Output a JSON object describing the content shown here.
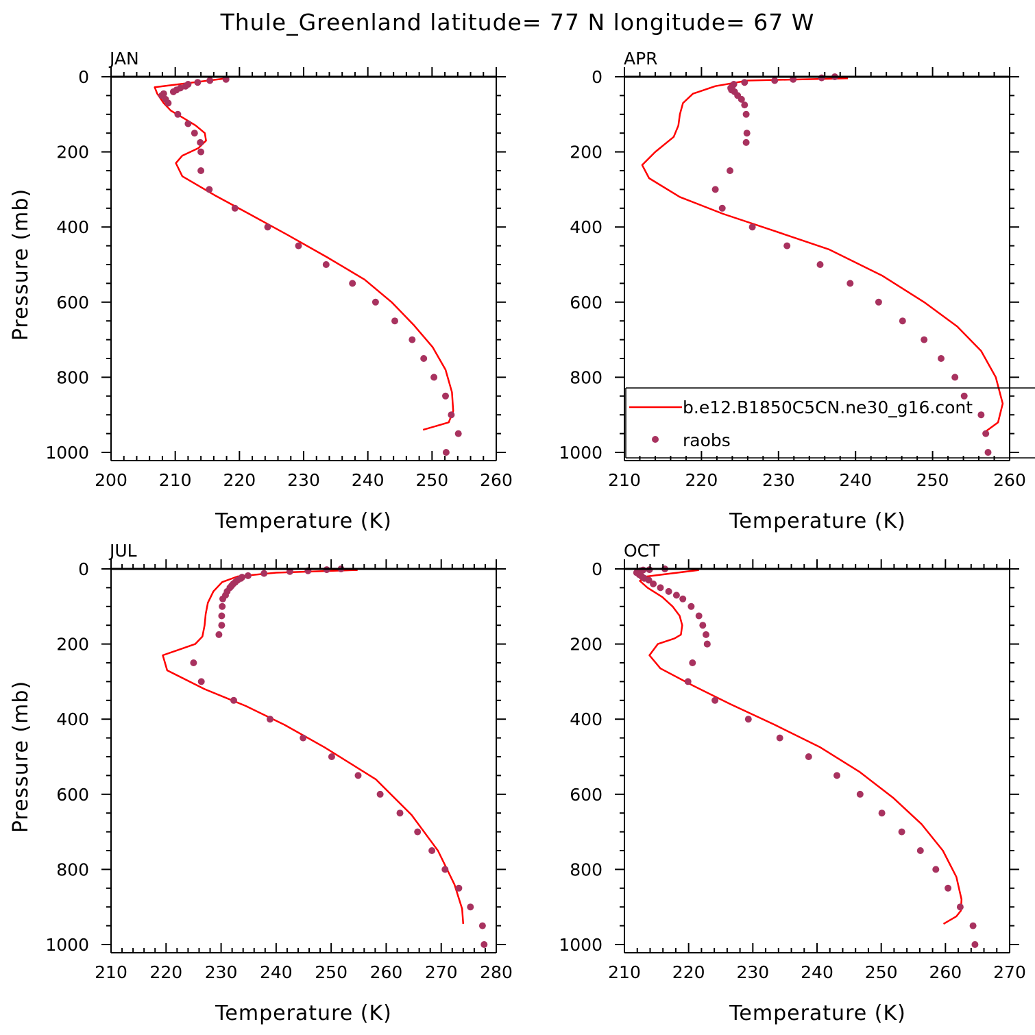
{
  "title": "Thule_Greenland  latitude= 77 N longitude= 67 W",
  "legend": {
    "model_label": "b.e12.B1850C5CN.ne30_g16.cont",
    "obs_label": "raobs"
  },
  "colors": {
    "model_line": "#ff0000",
    "obs_marker": "#a8325f"
  },
  "chart_data": [
    {
      "type": "line",
      "panel": "JAN",
      "xlabel": "Temperature (K)",
      "ylabel": "Pressure (mb)",
      "xlim": [
        200,
        260
      ],
      "ylim": [
        1000,
        0
      ],
      "xticks": [
        200,
        210,
        220,
        230,
        240,
        250,
        260
      ],
      "yticks": [
        0,
        200,
        400,
        600,
        800,
        1000
      ],
      "series": [
        {
          "name": "b.e12.B1850C5CN.ne30_g16.cont",
          "kind": "line",
          "x": [
            218,
            206.8,
            207.2,
            208.2,
            209.3,
            211.3,
            213.2,
            214.6,
            214.8,
            213.6,
            211.1,
            210.1,
            211.1,
            216.1,
            221.5,
            227.4,
            233.6,
            239.5,
            243.7,
            247.1,
            250.1,
            252.1,
            253.1,
            253.3,
            252.6,
            248.6
          ],
          "y": [
            4,
            28,
            45,
            70,
            90,
            110,
            130,
            150,
            170,
            190,
            210,
            230,
            265,
            315,
            365,
            420,
            480,
            540,
            600,
            660,
            720,
            780,
            840,
            890,
            920,
            940
          ]
        },
        {
          "name": "raobs",
          "kind": "points",
          "x": [
            217.9,
            215.4,
            213.5,
            212,
            211.6,
            210.8,
            210.2,
            209.7,
            208.2,
            207.9,
            208.5,
            208.9,
            210.4,
            212,
            213,
            213.9,
            214,
            214,
            215.3,
            219.3,
            224.4,
            229.2,
            233.5,
            237.6,
            241.2,
            244.2,
            246.9,
            248.7,
            250.3,
            252.1,
            253,
            254.1,
            252.2
          ],
          "y": [
            7,
            10,
            15,
            20,
            25,
            30,
            35,
            40,
            45,
            50,
            60,
            70,
            100,
            125,
            150,
            175,
            200,
            250,
            300,
            350,
            400,
            450,
            500,
            550,
            600,
            650,
            700,
            750,
            800,
            850,
            900,
            950,
            1000
          ]
        }
      ]
    },
    {
      "type": "line",
      "panel": "APR",
      "xlabel": "Temperature (K)",
      "ylabel": "",
      "xlim": [
        210,
        260
      ],
      "ylim": [
        1000,
        0
      ],
      "xticks": [
        210,
        220,
        230,
        240,
        250,
        260
      ],
      "yticks": [
        0,
        200,
        400,
        600,
        800,
        1000
      ],
      "series": [
        {
          "name": "b.e12.B1850C5CN.ne30_g16.cont",
          "kind": "line",
          "x": [
            239,
            226,
            221.8,
            218.9,
            217.6,
            217.2,
            217,
            216.4,
            214,
            212.3,
            213.2,
            217.2,
            222.8,
            229.4,
            236.6,
            243.5,
            248.9,
            253.2,
            256.3,
            258.2,
            259.1,
            258.5,
            256.5
          ],
          "y": [
            4,
            10,
            25,
            45,
            70,
            100,
            130,
            160,
            200,
            235,
            270,
            320,
            365,
            410,
            460,
            530,
            600,
            665,
            730,
            800,
            870,
            920,
            950
          ]
        },
        {
          "name": "raobs",
          "kind": "points",
          "x": [
            237.3,
            235.6,
            231.9,
            229.5,
            225.6,
            224.2,
            224,
            223.8,
            223.9,
            224.3,
            224.7,
            225.2,
            225.6,
            225.8,
            225.9,
            225.8,
            223.7,
            221.8,
            222.7,
            226.6,
            231.1,
            235.4,
            239.3,
            243,
            246.1,
            248.9,
            251.1,
            252.9,
            254.1,
            256.3,
            256.9,
            257.2
          ],
          "y": [
            0,
            3,
            7,
            10,
            15,
            20,
            25,
            30,
            35,
            40,
            50,
            60,
            75,
            100,
            150,
            175,
            250,
            300,
            350,
            400,
            450,
            500,
            550,
            600,
            650,
            700,
            750,
            800,
            850,
            900,
            950,
            1000
          ]
        }
      ]
    },
    {
      "type": "line",
      "panel": "JUL",
      "xlabel": "Temperature (K)",
      "ylabel": "Pressure (mb)",
      "xlim": [
        210,
        280
      ],
      "ylim": [
        1000,
        0
      ],
      "xticks": [
        210,
        220,
        230,
        240,
        250,
        260,
        270,
        280
      ],
      "yticks": [
        0,
        200,
        400,
        600,
        800,
        1000
      ],
      "series": [
        {
          "name": "b.e12.B1850C5CN.ne30_g16.cont",
          "kind": "line",
          "x": [
            254.8,
            240,
            233,
            230.2,
            228.6,
            227.6,
            227.2,
            227,
            226.6,
            225.3,
            219.4,
            220.2,
            227,
            234.5,
            241.5,
            248.8,
            258.1,
            264.6,
            269.4,
            272.4,
            273.8,
            274
          ],
          "y": [
            3,
            10,
            20,
            35,
            60,
            90,
            120,
            150,
            180,
            200,
            230,
            270,
            320,
            365,
            415,
            475,
            560,
            655,
            750,
            840,
            905,
            945
          ]
        },
        {
          "name": "raobs",
          "kind": "points",
          "x": [
            251.8,
            249.2,
            245.8,
            242.5,
            237.8,
            234.9,
            233.8,
            233.6,
            233,
            232.6,
            232.2,
            231.9,
            231.6,
            231.1,
            230.8,
            230.3,
            230.2,
            230.1,
            230.1,
            229.6,
            225,
            226.4,
            232.3,
            238.9,
            244.9,
            250.1,
            254.9,
            258.9,
            262.5,
            265.7,
            268.3,
            270.7,
            273.2,
            275.3,
            277.5,
            277.8
          ],
          "y": [
            0,
            2,
            5,
            7,
            12,
            18,
            22,
            25,
            30,
            35,
            40,
            45,
            50,
            60,
            70,
            80,
            100,
            125,
            150,
            175,
            250,
            300,
            350,
            400,
            450,
            500,
            550,
            600,
            650,
            700,
            750,
            800,
            850,
            900,
            950,
            1000
          ]
        }
      ]
    },
    {
      "type": "line",
      "panel": "OCT",
      "xlabel": "Temperature (K)",
      "ylabel": "",
      "xlim": [
        210,
        270
      ],
      "ylim": [
        1000,
        0
      ],
      "xticks": [
        210,
        220,
        230,
        240,
        250,
        260,
        270
      ],
      "yticks": [
        0,
        200,
        400,
        600,
        800,
        1000
      ],
      "series": [
        {
          "name": "b.e12.B1850C5CN.ne30_g16.cont",
          "kind": "line",
          "x": [
            221.6,
            213.5,
            212.4,
            213.6,
            215.9,
            217.5,
            218.6,
            219,
            218.8,
            217.8,
            215.2,
            213.9,
            215.6,
            220.6,
            226.5,
            233.4,
            240.5,
            246.6,
            251.9,
            256.3,
            259.6,
            261.7,
            262.5,
            262.4,
            261.7,
            259.7
          ],
          "y": [
            3,
            20,
            32,
            50,
            75,
            100,
            125,
            150,
            175,
            185,
            200,
            230,
            265,
            310,
            360,
            415,
            475,
            540,
            610,
            680,
            750,
            820,
            880,
            910,
            925,
            945
          ]
        },
        {
          "name": "raobs",
          "kind": "points",
          "x": [
            216.3,
            213.9,
            212.9,
            212.5,
            212.1,
            211.9,
            212.3,
            212.7,
            213.1,
            213.8,
            214.5,
            215.6,
            216.9,
            218.1,
            219.1,
            220.4,
            221.6,
            222.2,
            222.7,
            222.9,
            222.9,
            220.6,
            219.9,
            224.1,
            229.3,
            234.2,
            238.7,
            243.1,
            246.7,
            250.1,
            253.2,
            256.1,
            258.5,
            260.4,
            262.3,
            264.3,
            264.6
          ],
          "y": [
            0,
            2,
            3,
            5,
            7,
            10,
            15,
            20,
            25,
            30,
            40,
            50,
            60,
            70,
            80,
            100,
            125,
            150,
            175,
            200,
            200,
            250,
            300,
            350,
            400,
            450,
            500,
            550,
            600,
            650,
            700,
            750,
            800,
            850,
            900,
            950,
            1000
          ]
        }
      ]
    }
  ]
}
